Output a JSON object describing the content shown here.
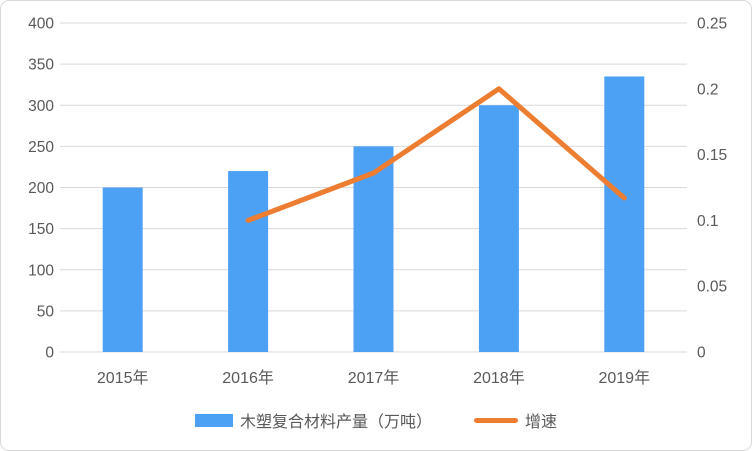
{
  "chart_data": {
    "type": "bar",
    "combo": "bar+line",
    "title": "",
    "categories": [
      "2015年",
      "2016年",
      "2017年",
      "2018年",
      "2019年"
    ],
    "series": [
      {
        "name": "木塑复合材料产量（万吨）",
        "type": "bar",
        "axis": "left",
        "color": "#4DA1F5",
        "values": [
          200,
          220,
          250,
          300,
          335
        ]
      },
      {
        "name": "增速",
        "type": "line",
        "axis": "right",
        "color": "#ED7D31",
        "values": [
          null,
          0.1,
          0.136,
          0.2,
          0.117
        ]
      }
    ],
    "left_axis": {
      "min": 0,
      "max": 400,
      "step": 50,
      "tick_labels": [
        "0",
        "50",
        "100",
        "150",
        "200",
        "250",
        "300",
        "350",
        "400"
      ]
    },
    "right_axis": {
      "min": 0,
      "max": 0.25,
      "step": 0.05,
      "tick_labels": [
        "0",
        "0.05",
        "0.1",
        "0.15",
        "0.2",
        "0.25"
      ]
    },
    "grid": true,
    "legend_position": "bottom",
    "colors": {
      "grid": "#D9D9D9",
      "axis_line": "#D9D9D9",
      "text": "#595959",
      "background": "#FFFFFF",
      "border": "#D9D9D9"
    }
  },
  "legend": {
    "items": [
      {
        "label": "木塑复合材料产量（万吨）",
        "swatch": "bar",
        "color": "#4DA1F5"
      },
      {
        "label": "增速",
        "swatch": "line",
        "color": "#ED7D31"
      }
    ]
  }
}
